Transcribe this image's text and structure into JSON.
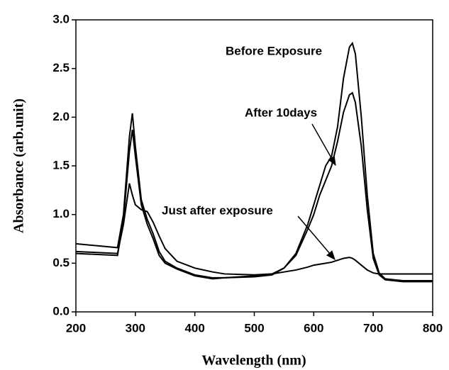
{
  "chart_data": {
    "type": "line",
    "x_label": "Wavelength (nm)",
    "y_label": "Absorbance (arb.unit)",
    "x": [
      200,
      270,
      280,
      290,
      295,
      300,
      310,
      320,
      330,
      340,
      350,
      370,
      400,
      430,
      450,
      500,
      530,
      550,
      570,
      590,
      600,
      610,
      620,
      630,
      640,
      650,
      660,
      665,
      670,
      680,
      690,
      700,
      710,
      720,
      750,
      800
    ],
    "series": [
      {
        "name": "Before Exposure",
        "color": "#000000",
        "values": [
          0.7,
          0.66,
          1.0,
          1.8,
          2.04,
          1.7,
          1.15,
          0.95,
          0.8,
          0.62,
          0.52,
          0.45,
          0.38,
          0.35,
          0.35,
          0.36,
          0.38,
          0.45,
          0.6,
          0.9,
          1.1,
          1.3,
          1.5,
          1.6,
          1.9,
          2.4,
          2.72,
          2.76,
          2.65,
          2.0,
          1.2,
          0.6,
          0.4,
          0.34,
          0.32,
          0.32
        ]
      },
      {
        "name": "After 10days",
        "color": "#000000",
        "values": [
          0.6,
          0.58,
          0.95,
          1.65,
          1.87,
          1.6,
          1.1,
          0.9,
          0.75,
          0.58,
          0.5,
          0.44,
          0.37,
          0.34,
          0.35,
          0.37,
          0.39,
          0.45,
          0.58,
          0.85,
          1.0,
          1.2,
          1.35,
          1.5,
          1.75,
          2.05,
          2.23,
          2.25,
          2.15,
          1.7,
          1.05,
          0.55,
          0.38,
          0.33,
          0.31,
          0.31
        ]
      },
      {
        "name": "Just after exposure",
        "color": "#000000",
        "values": [
          0.62,
          0.6,
          0.9,
          1.32,
          1.2,
          1.1,
          1.05,
          1.03,
          0.92,
          0.78,
          0.65,
          0.52,
          0.45,
          0.41,
          0.39,
          0.38,
          0.39,
          0.41,
          0.43,
          0.46,
          0.48,
          0.49,
          0.5,
          0.51,
          0.53,
          0.55,
          0.56,
          0.55,
          0.53,
          0.48,
          0.43,
          0.4,
          0.39,
          0.39,
          0.39,
          0.39
        ]
      }
    ],
    "xlim": [
      200,
      800
    ],
    "xticks": [
      200,
      300,
      400,
      500,
      600,
      700,
      800
    ],
    "ylim": [
      0,
      3
    ],
    "yticks": [
      {
        "value": 0,
        "label": "0.0"
      },
      0.5,
      {
        "value": 1,
        "label": "1.0"
      },
      1.5,
      {
        "value": 2,
        "label": "2.0"
      },
      2.5,
      {
        "value": 3,
        "label": "3.0"
      }
    ]
  }
}
